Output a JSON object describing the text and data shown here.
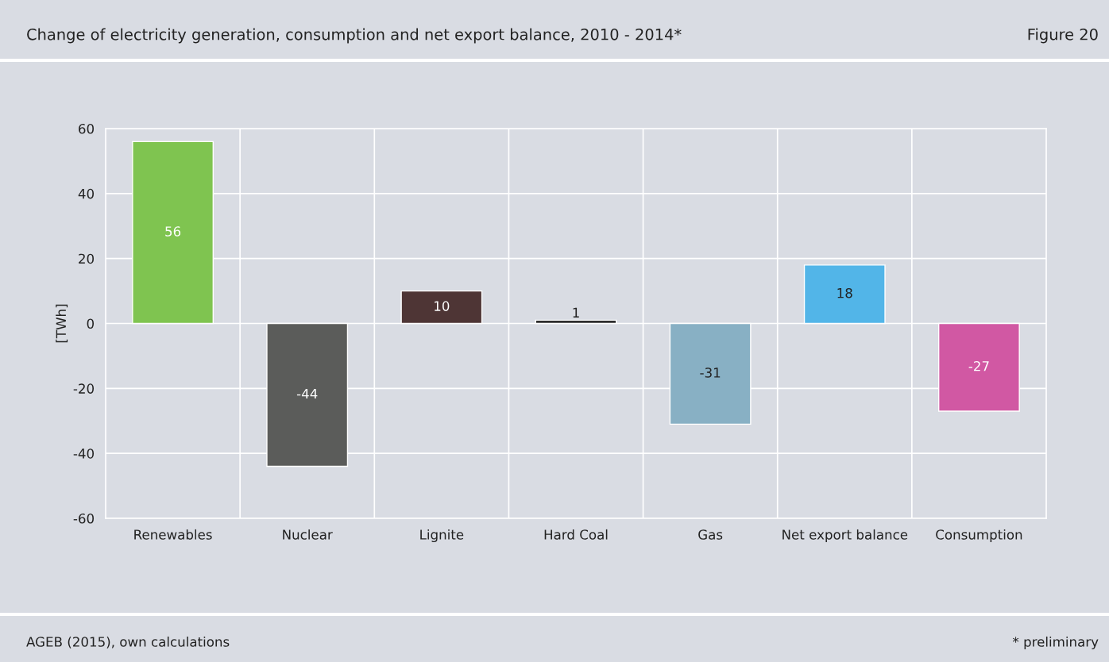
{
  "chart_data": {
    "type": "bar",
    "title": "Change of electricity generation, consumption and net export balance, 2010 - 2014*",
    "ylabel": "[TWh]",
    "categories": [
      "Renewables",
      "Nuclear",
      "Lignite",
      "Hard Coal",
      "Gas",
      "Net export balance",
      "Consumption"
    ],
    "values": [
      56,
      -44,
      10,
      1,
      -31,
      18,
      -27
    ],
    "colors": [
      "#7fc450",
      "#5b5c5a",
      "#4e3535",
      "#2d2d2d",
      "#88b0c4",
      "#52b5e8",
      "#d158a3"
    ],
    "ylim": [
      -60,
      60
    ],
    "yticks": [
      -60,
      -40,
      -20,
      0,
      20,
      40,
      60
    ],
    "grid": true,
    "data_labels": true,
    "annotations": [
      "Figure 20",
      "AGEB (2015), own calculations",
      "* preliminary"
    ]
  }
}
